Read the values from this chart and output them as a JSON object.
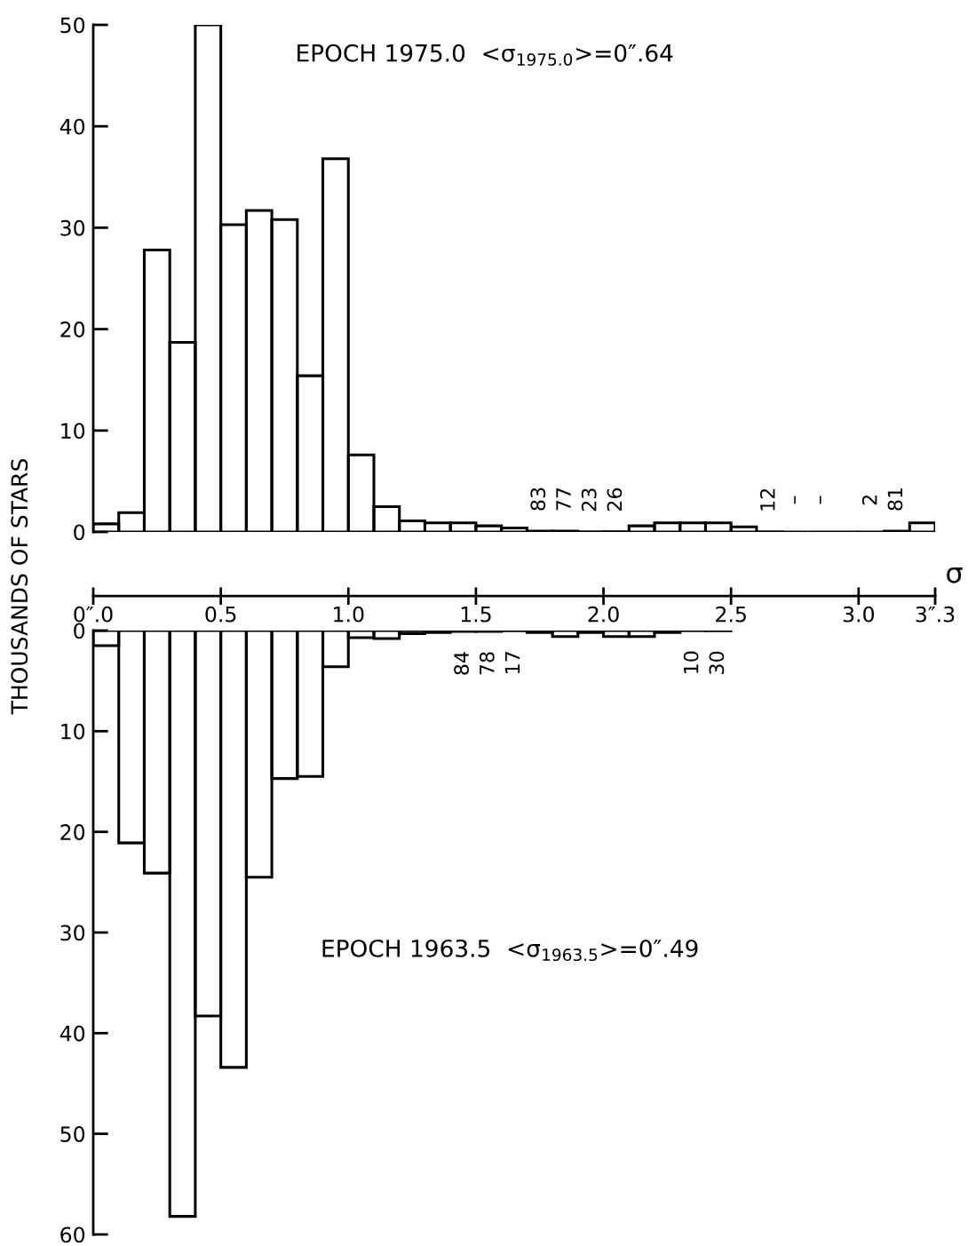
{
  "chart_data": [
    {
      "type": "histogram",
      "title": "EPOCH 1975.0  <σ$_{1975.0}$>=0″.64",
      "xlabel": "σ",
      "ylabel": "THOUSANDS OF STARS",
      "bins": [
        0.0,
        0.1,
        0.2,
        0.3,
        0.4,
        0.5,
        0.6,
        0.7,
        0.8,
        0.9,
        1.0,
        1.1,
        1.2,
        1.3,
        1.4,
        1.5,
        1.6,
        1.7,
        1.8,
        1.9,
        2.0,
        2.1,
        2.2,
        2.3,
        2.4,
        2.5,
        2.6,
        2.7,
        2.8,
        2.9,
        3.0,
        3.1,
        3.2,
        3.3
      ],
      "values": [
        0.8,
        1.9,
        27.8,
        18.7,
        50,
        30.3,
        31.7,
        30.8,
        15.4,
        36.8,
        7.6,
        2.5,
        1.1,
        0.9,
        0.9,
        0.6,
        0.4,
        0.083,
        0.077,
        0.023,
        0.026,
        0.6,
        0.9,
        0.9,
        0.9,
        0.5,
        0.012,
        0,
        0,
        0,
        0.002,
        0.081,
        0.9
      ],
      "color": "#000000",
      "xlim": [
        0,
        3.3
      ],
      "xticks": [
        {
          "value": 0.0,
          "label": "0″.0"
        },
        0.5,
        {
          "value": 1.0,
          "label": "1.0"
        },
        1.5,
        {
          "value": 2.0,
          "label": "2.0"
        },
        2.5,
        {
          "value": 3.0,
          "label": "3.0"
        },
        {
          "value": 3.3,
          "label": "3″.3"
        }
      ],
      "ylim": [
        0,
        50
      ],
      "yticks": [
        0,
        10,
        20,
        30,
        40,
        50
      ],
      "annotations": [
        {
          "text": "83",
          "x": 1.75,
          "y": 0.083
        },
        {
          "text": "77",
          "x": 1.85,
          "y": 0.077
        },
        {
          "text": "23",
          "x": 1.95,
          "y": 0.023
        },
        {
          "text": "26",
          "x": 2.05,
          "y": 0.026
        },
        {
          "text": "12",
          "x": 2.65,
          "y": 0.012
        },
        {
          "text": "–",
          "x": 2.75,
          "y": 0
        },
        {
          "text": "–",
          "x": 2.85,
          "y": 0
        },
        {
          "text": "2",
          "x": 3.05,
          "y": 0.002
        },
        {
          "text": "81",
          "x": 3.15,
          "y": 0.081
        }
      ]
    },
    {
      "type": "histogram",
      "title": "EPOCH 1963.5  <σ$_{1963.5}$>=0″.49",
      "bins": [
        0.0,
        0.1,
        0.2,
        0.3,
        0.4,
        0.5,
        0.6,
        0.7,
        0.8,
        0.9,
        1.0,
        1.1,
        1.2,
        1.3,
        1.4,
        1.5,
        1.6,
        1.7,
        1.8,
        1.9,
        2.0,
        2.1,
        2.2,
        2.3,
        2.4,
        2.5
      ],
      "values": [
        1.5,
        21.1,
        24.1,
        58.2,
        38.3,
        43.4,
        24.5,
        14.7,
        14.5,
        3.6,
        0.7,
        0.8,
        0.3,
        0.2,
        0.084,
        0.078,
        0.017,
        0.2,
        0.6,
        0.2,
        0.6,
        0.6,
        0.2,
        0.01,
        0.03
      ],
      "color": "#000000",
      "xlim": [
        0,
        3.3
      ],
      "ylim": [
        60,
        0
      ],
      "yticks": [
        0,
        10,
        20,
        30,
        40,
        50,
        60
      ],
      "tick_labels": "y",
      "annotations": [
        {
          "text": "84",
          "x": 1.45,
          "y": 0.084
        },
        {
          "text": "78",
          "x": 1.55,
          "y": 0.078
        },
        {
          "text": "17",
          "x": 1.65,
          "y": 0.017
        },
        {
          "text": "10",
          "x": 2.35,
          "y": 0.01
        },
        {
          "text": "30",
          "x": 2.45,
          "y": 0.03
        }
      ]
    }
  ]
}
